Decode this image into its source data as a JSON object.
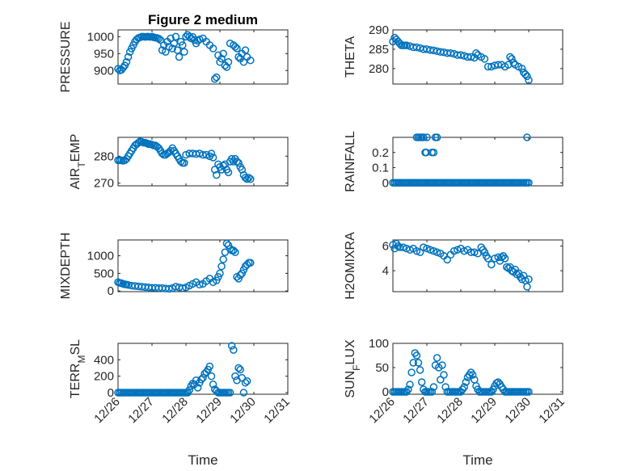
{
  "title": "Figure 2 medium",
  "colors": {
    "series": "#0072BD",
    "axis": "#262626",
    "grid": "#d0d0d0"
  },
  "chart_data": [
    {
      "type": "scatter",
      "ylabel": "PRESSURE",
      "title": "Figure 2 medium",
      "xlabel": "",
      "ylim": [
        860,
        1020
      ],
      "yticks": [
        900,
        950,
        1000
      ],
      "ytick_labels": [
        "900",
        "950",
        "1000"
      ],
      "xlim": [
        0,
        5
      ],
      "xticks": [
        0,
        1,
        2,
        3,
        4,
        5
      ],
      "xtick_labels": [],
      "grid": true,
      "x": [
        0.0,
        0.05,
        0.1,
        0.15,
        0.2,
        0.25,
        0.3,
        0.35,
        0.4,
        0.45,
        0.5,
        0.55,
        0.6,
        0.65,
        0.7,
        0.75,
        0.8,
        0.85,
        0.9,
        0.95,
        1.0,
        1.05,
        1.1,
        1.15,
        1.2,
        1.25,
        1.3,
        1.35,
        1.4,
        1.45,
        1.5,
        1.55,
        1.6,
        1.65,
        1.7,
        1.75,
        1.8,
        1.85,
        1.9,
        1.95,
        2.0,
        2.05,
        2.1,
        2.15,
        2.2,
        2.25,
        2.3,
        2.35,
        2.4,
        2.5,
        2.6,
        2.7,
        2.8,
        2.85,
        2.9,
        2.95,
        3.0,
        3.05,
        3.1,
        3.15,
        3.2,
        3.25,
        3.3,
        3.4,
        3.45,
        3.5,
        3.55,
        3.6,
        3.65,
        3.7,
        3.75,
        3.8,
        3.9
      ],
      "y": [
        905,
        900,
        902,
        908,
        915,
        925,
        940,
        955,
        965,
        975,
        985,
        992,
        996,
        998,
        1000,
        1000,
        999,
        1000,
        1000,
        999,
        1000,
        998,
        997,
        996,
        994,
        990,
        960,
        975,
        955,
        985,
        970,
        995,
        965,
        980,
        1000,
        960,
        940,
        985,
        975,
        955,
        1000,
        1005,
        1000,
        995,
        999,
        990,
        980,
        988,
        992,
        995,
        985,
        975,
        965,
        875,
        880,
        945,
        925,
        935,
        950,
        915,
        910,
        925,
        980,
        975,
        970,
        965,
        940,
        935,
        950,
        925,
        960,
        940,
        930
      ]
    },
    {
      "type": "scatter",
      "ylabel": "THETA",
      "xlabel": "",
      "ylim": [
        276,
        290
      ],
      "yticks": [
        280,
        285,
        290
      ],
      "ytick_labels": [
        "280",
        "285",
        "290"
      ],
      "xlim": [
        0,
        5
      ],
      "xticks": [
        0,
        1,
        2,
        3,
        4,
        5
      ],
      "xtick_labels": [],
      "grid": true,
      "x": [
        0.0,
        0.05,
        0.1,
        0.15,
        0.2,
        0.25,
        0.3,
        0.35,
        0.4,
        0.5,
        0.6,
        0.7,
        0.8,
        0.9,
        1.0,
        1.1,
        1.2,
        1.3,
        1.4,
        1.5,
        1.6,
        1.7,
        1.8,
        1.9,
        2.0,
        2.1,
        2.2,
        2.3,
        2.4,
        2.45,
        2.5,
        2.6,
        2.7,
        2.8,
        2.9,
        3.0,
        3.1,
        3.2,
        3.3,
        3.4,
        3.45,
        3.5,
        3.55,
        3.6,
        3.7,
        3.8,
        3.85,
        3.9,
        3.95,
        4.0
      ],
      "y": [
        287,
        288,
        287.5,
        287,
        286.5,
        286,
        286,
        286,
        286,
        285.8,
        285.5,
        285.5,
        285.3,
        285,
        285,
        284.8,
        284.7,
        284.5,
        284.3,
        284.2,
        284,
        284,
        283.8,
        283.5,
        283.5,
        283.3,
        283,
        283,
        282.8,
        284,
        283.5,
        283,
        282.5,
        280.5,
        280.5,
        280.8,
        281,
        281,
        280.5,
        281,
        283,
        282.5,
        281.5,
        281,
        280.5,
        280,
        279,
        278.5,
        278,
        277
      ]
    },
    {
      "type": "scatter",
      "ylabel": "AIR_T EMP",
      "xlabel": "",
      "ylim": [
        269,
        287
      ],
      "yticks": [
        270,
        280
      ],
      "ytick_labels": [
        "270",
        "280"
      ],
      "xlim": [
        0,
        5
      ],
      "xticks": [
        0,
        1,
        2,
        3,
        4,
        5
      ],
      "xtick_labels": [],
      "grid": true,
      "x": [
        0.0,
        0.05,
        0.1,
        0.15,
        0.2,
        0.25,
        0.3,
        0.35,
        0.4,
        0.45,
        0.5,
        0.55,
        0.6,
        0.65,
        0.7,
        0.75,
        0.8,
        0.85,
        0.9,
        0.95,
        1.0,
        1.05,
        1.1,
        1.15,
        1.2,
        1.25,
        1.3,
        1.35,
        1.4,
        1.45,
        1.5,
        1.55,
        1.6,
        1.65,
        1.7,
        1.75,
        1.8,
        1.85,
        1.9,
        1.95,
        2.0,
        2.1,
        2.2,
        2.3,
        2.4,
        2.5,
        2.6,
        2.7,
        2.75,
        2.8,
        2.85,
        2.9,
        2.95,
        3.0,
        3.05,
        3.1,
        3.15,
        3.2,
        3.25,
        3.3,
        3.35,
        3.4,
        3.45,
        3.5,
        3.55,
        3.6,
        3.65,
        3.7,
        3.75,
        3.8,
        3.85,
        3.9
      ],
      "y": [
        278.5,
        278.5,
        278.5,
        278.3,
        278.5,
        279,
        280,
        281,
        282,
        283,
        284,
        284.5,
        285,
        285.5,
        285.3,
        285,
        285,
        284.8,
        284.5,
        284.5,
        284.3,
        284,
        284,
        283.5,
        283,
        282,
        281,
        280.5,
        280.5,
        281,
        281.5,
        282,
        283,
        282,
        281,
        280,
        279,
        278,
        277.5,
        277.5,
        280.5,
        281,
        281,
        280.8,
        281,
        280.5,
        280.5,
        280,
        281,
        279.5,
        275,
        273,
        277,
        276,
        275,
        276.5,
        277,
        275,
        274,
        278,
        279,
        278,
        279,
        278,
        277.5,
        276,
        275,
        273,
        272,
        271.5,
        272,
        271.5
      ]
    },
    {
      "type": "scatter",
      "ylabel": "RAINFALL",
      "xlabel": "",
      "ylim": [
        -0.02,
        0.3
      ],
      "yticks": [
        0,
        0.1,
        0.2
      ],
      "ytick_labels": [
        "0",
        "0.1",
        "0.2"
      ],
      "xlim": [
        0,
        5
      ],
      "xticks": [
        0,
        1,
        2,
        3,
        4,
        5
      ],
      "xtick_labels": [],
      "grid": true,
      "x": [
        0.0,
        0.05,
        0.1,
        0.15,
        0.2,
        0.25,
        0.3,
        0.35,
        0.4,
        0.45,
        0.5,
        0.55,
        0.6,
        0.65,
        0.7,
        0.75,
        0.8,
        0.85,
        0.9,
        0.95,
        1.0,
        1.05,
        1.1,
        1.15,
        1.2,
        1.25,
        1.3,
        1.35,
        1.4,
        1.45,
        1.5,
        1.55,
        1.6,
        1.65,
        1.7,
        1.75,
        1.8,
        1.85,
        1.9,
        1.95,
        2.0,
        2.05,
        2.1,
        2.15,
        2.2,
        2.25,
        2.3,
        2.35,
        2.4,
        2.45,
        2.5,
        2.55,
        2.6,
        2.65,
        2.7,
        2.75,
        2.8,
        2.85,
        2.9,
        2.95,
        3.0,
        3.05,
        3.1,
        3.15,
        3.2,
        3.25,
        3.3,
        3.35,
        3.4,
        3.45,
        3.5,
        3.55,
        3.6,
        3.65,
        3.7,
        3.75,
        3.8,
        3.85,
        3.9,
        3.95,
        4.0,
        0.7,
        0.75,
        0.8,
        0.85,
        0.9,
        0.95,
        0.98,
        1.0,
        1.15,
        1.2,
        1.25,
        1.3,
        3.95
      ],
      "y": [
        0,
        0,
        0,
        0,
        0,
        0,
        0,
        0,
        0,
        0,
        0,
        0,
        0,
        0,
        0,
        0,
        0,
        0,
        0,
        0,
        0,
        0,
        0,
        0,
        0,
        0,
        0,
        0,
        0,
        0,
        0,
        0,
        0,
        0,
        0,
        0,
        0,
        0,
        0,
        0,
        0,
        0,
        0,
        0,
        0,
        0,
        0,
        0,
        0,
        0,
        0,
        0,
        0,
        0,
        0,
        0,
        0,
        0,
        0,
        0,
        0,
        0,
        0,
        0,
        0,
        0,
        0,
        0,
        0,
        0,
        0,
        0,
        0,
        0,
        0,
        0,
        0,
        0,
        0,
        0,
        0,
        0.3,
        0.3,
        0.3,
        0.3,
        0.3,
        0.2,
        0.2,
        0.3,
        0.2,
        0.2,
        0.3,
        0.3,
        0.3
      ]
    },
    {
      "type": "scatter",
      "ylabel": "MIXDEPTH",
      "xlabel": "",
      "ylim": [
        -20,
        1450
      ],
      "yticks": [
        0,
        500,
        1000
      ],
      "ytick_labels": [
        "0",
        "500",
        "1000"
      ],
      "xlim": [
        0,
        5
      ],
      "xticks": [
        0,
        1,
        2,
        3,
        4,
        5
      ],
      "xtick_labels": [],
      "grid": true,
      "x": [
        0.0,
        0.05,
        0.1,
        0.15,
        0.2,
        0.25,
        0.3,
        0.4,
        0.5,
        0.6,
        0.7,
        0.8,
        0.9,
        1.0,
        1.1,
        1.2,
        1.3,
        1.4,
        1.5,
        1.6,
        1.7,
        1.8,
        1.9,
        2.0,
        2.1,
        2.2,
        2.3,
        2.4,
        2.5,
        2.6,
        2.7,
        2.8,
        2.9,
        2.95,
        3.0,
        3.05,
        3.1,
        3.15,
        3.2,
        3.25,
        3.3,
        3.35,
        3.4,
        3.45,
        3.5,
        3.55,
        3.6,
        3.65,
        3.7,
        3.75,
        3.8,
        3.85,
        3.9
      ],
      "y": [
        250,
        230,
        220,
        200,
        190,
        180,
        170,
        150,
        140,
        130,
        120,
        110,
        100,
        90,
        90,
        80,
        80,
        70,
        60,
        80,
        120,
        100,
        80,
        100,
        150,
        200,
        250,
        180,
        200,
        280,
        350,
        250,
        300,
        400,
        500,
        700,
        900,
        1100,
        1350,
        1300,
        1200,
        1150,
        1150,
        1100,
        400,
        350,
        450,
        500,
        600,
        700,
        750,
        800,
        800
      ]
    },
    {
      "type": "scatter",
      "ylabel": "H2OMIXRA",
      "xlabel": "",
      "ylim": [
        2.3,
        6.5
      ],
      "yticks": [
        4,
        6
      ],
      "ytick_labels": [
        "4",
        "6"
      ],
      "xlim": [
        0,
        5
      ],
      "xticks": [
        0,
        1,
        2,
        3,
        4,
        5
      ],
      "xtick_labels": [],
      "grid": true,
      "x": [
        0.0,
        0.05,
        0.1,
        0.15,
        0.2,
        0.3,
        0.4,
        0.5,
        0.6,
        0.7,
        0.8,
        0.9,
        1.0,
        1.1,
        1.2,
        1.3,
        1.4,
        1.5,
        1.6,
        1.7,
        1.8,
        1.9,
        2.0,
        2.1,
        2.2,
        2.3,
        2.4,
        2.5,
        2.6,
        2.65,
        2.7,
        2.75,
        2.8,
        2.9,
        3.0,
        3.1,
        3.15,
        3.2,
        3.25,
        3.3,
        3.35,
        3.4,
        3.45,
        3.5,
        3.55,
        3.6,
        3.65,
        3.7,
        3.75,
        3.8,
        3.85,
        3.9,
        3.95,
        4.0
      ],
      "y": [
        6.1,
        5.8,
        6.2,
        6.0,
        5.9,
        5.9,
        5.8,
        5.7,
        5.8,
        5.6,
        5.5,
        5.9,
        5.8,
        5.7,
        5.6,
        5.5,
        5.4,
        5.2,
        4.9,
        5.3,
        5.6,
        5.7,
        5.8,
        5.6,
        5.7,
        5.5,
        5.5,
        5.4,
        5.9,
        5.7,
        5.5,
        5.2,
        5.0,
        4.5,
        5.0,
        5.1,
        4.8,
        5.1,
        5.2,
        5.0,
        4.3,
        4.2,
        4.3,
        4.0,
        3.9,
        4.1,
        3.7,
        3.8,
        3.5,
        3.3,
        3.6,
        3.2,
        2.7,
        3.3
      ]
    },
    {
      "type": "scatter",
      "ylabel": "TERR_M SL",
      "xlabel": "Time",
      "ylim": [
        -20,
        600
      ],
      "yticks": [
        0,
        200,
        400
      ],
      "ytick_labels": [
        "0",
        "200",
        "400"
      ],
      "xlim": [
        0,
        5
      ],
      "xticks": [
        0,
        1,
        2,
        3,
        4,
        5
      ],
      "xtick_labels": [
        "12/26",
        "12/27",
        "12/28",
        "12/29",
        "12/30",
        "12/31"
      ],
      "grid": true,
      "x": [
        0.0,
        0.05,
        0.1,
        0.15,
        0.2,
        0.25,
        0.3,
        0.35,
        0.4,
        0.45,
        0.5,
        0.55,
        0.6,
        0.65,
        0.7,
        0.75,
        0.8,
        0.85,
        0.9,
        0.95,
        1.0,
        1.05,
        1.1,
        1.15,
        1.2,
        1.25,
        1.3,
        1.35,
        1.4,
        1.45,
        1.5,
        1.55,
        1.6,
        1.65,
        1.7,
        1.75,
        1.8,
        1.85,
        1.9,
        1.95,
        2.0,
        2.05,
        2.1,
        2.15,
        2.2,
        2.25,
        2.3,
        2.35,
        2.4,
        2.45,
        2.5,
        2.55,
        2.6,
        2.65,
        2.7,
        2.75,
        2.8,
        2.85,
        2.9,
        2.95,
        3.0,
        3.05,
        3.1,
        3.15,
        3.2,
        3.25,
        3.3,
        3.35,
        3.4,
        3.45,
        3.5,
        3.55,
        3.6,
        3.65,
        3.7,
        3.75,
        3.8
      ],
      "y": [
        0,
        0,
        0,
        0,
        0,
        0,
        0,
        0,
        0,
        0,
        0,
        0,
        0,
        0,
        0,
        0,
        0,
        0,
        0,
        0,
        0,
        0,
        0,
        0,
        0,
        0,
        0,
        0,
        0,
        0,
        0,
        0,
        0,
        0,
        0,
        0,
        0,
        0,
        0,
        0,
        0,
        0,
        30,
        80,
        110,
        100,
        150,
        60,
        120,
        160,
        180,
        230,
        250,
        280,
        320,
        200,
        100,
        40,
        20,
        0,
        0,
        0,
        0,
        0,
        0,
        0,
        0,
        570,
        520,
        200,
        150,
        300,
        280,
        180,
        0,
        120,
        140
      ]
    },
    {
      "type": "scatter",
      "ylabel": "SUN_F LUX",
      "xlabel": "Time",
      "ylim": [
        -5,
        100
      ],
      "yticks": [
        0,
        50,
        100
      ],
      "ytick_labels": [
        "0",
        "50",
        "100"
      ],
      "xlim": [
        0,
        5
      ],
      "xticks": [
        0,
        1,
        2,
        3,
        4,
        5
      ],
      "xtick_labels": [
        "12/26",
        "12/27",
        "12/28",
        "12/29",
        "12/30",
        "12/31"
      ],
      "grid": true,
      "x": [
        0.0,
        0.05,
        0.1,
        0.15,
        0.2,
        0.25,
        0.3,
        0.35,
        0.4,
        0.45,
        0.5,
        0.55,
        0.6,
        0.65,
        0.7,
        0.75,
        0.8,
        0.85,
        0.9,
        0.95,
        1.0,
        1.05,
        1.1,
        1.15,
        1.2,
        1.25,
        1.3,
        1.35,
        1.4,
        1.45,
        1.5,
        1.55,
        1.6,
        1.65,
        1.7,
        1.75,
        1.8,
        1.85,
        1.9,
        1.95,
        2.0,
        2.05,
        2.1,
        2.15,
        2.2,
        2.25,
        2.3,
        2.35,
        2.4,
        2.45,
        2.5,
        2.55,
        2.6,
        2.65,
        2.7,
        2.75,
        2.8,
        2.85,
        2.9,
        2.95,
        3.0,
        3.05,
        3.1,
        3.15,
        3.2,
        3.25,
        3.3,
        3.35,
        3.4,
        3.45,
        3.5,
        3.55,
        3.6,
        3.65,
        3.7,
        3.75,
        3.8,
        3.85,
        3.9,
        3.95,
        4.0
      ],
      "y": [
        0,
        0,
        0,
        0,
        0,
        0,
        0,
        0,
        0,
        5,
        15,
        40,
        60,
        80,
        75,
        60,
        45,
        20,
        5,
        0,
        0,
        0,
        0,
        0,
        10,
        55,
        70,
        50,
        25,
        55,
        35,
        10,
        0,
        0,
        0,
        0,
        0,
        0,
        0,
        0,
        0,
        5,
        10,
        20,
        30,
        35,
        40,
        35,
        25,
        12,
        5,
        0,
        0,
        0,
        0,
        0,
        0,
        0,
        0,
        5,
        12,
        18,
        20,
        16,
        10,
        5,
        0,
        0,
        0,
        0,
        0,
        0,
        0,
        0,
        0,
        0,
        0,
        0,
        0,
        0,
        0
      ]
    }
  ]
}
